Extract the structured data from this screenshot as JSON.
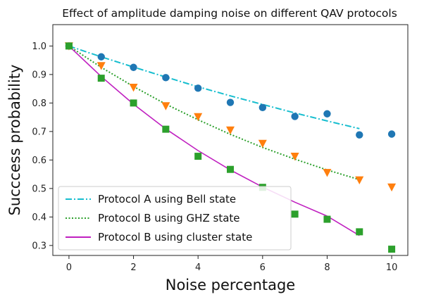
{
  "chart_data": {
    "type": "scatter",
    "title": "Effect of amplitude damping noise on different QAV protocols",
    "xlabel": "Noise percentage",
    "ylabel": "Succcess probability",
    "xlim": [
      -0.5,
      10.5
    ],
    "ylim": [
      0.265,
      1.075
    ],
    "xticks": [
      0,
      2,
      4,
      6,
      8,
      10
    ],
    "yticks": [
      0.3,
      0.4,
      0.5,
      0.6,
      0.7,
      0.8,
      0.9,
      1.0
    ],
    "xtick_labels": [
      "0",
      "2",
      "4",
      "6",
      "8",
      "10"
    ],
    "ytick_labels": [
      "0.3",
      "0.4",
      "0.5",
      "0.6",
      "0.7",
      "0.8",
      "0.9",
      "1.0"
    ],
    "grid": false,
    "legend_position": "lower-left",
    "series": [
      {
        "name": "Protocol A using Bell state",
        "color": "#1f77b4",
        "line_color": "#17becf",
        "line_style": "dash-dot",
        "marker": "circle",
        "points_x": [
          0,
          1,
          2,
          3,
          4,
          5,
          6,
          7,
          8,
          9,
          10
        ],
        "points_y": [
          1.0,
          0.962,
          0.925,
          0.889,
          0.852,
          0.802,
          0.784,
          0.753,
          0.762,
          0.688,
          0.691
        ],
        "fit_x": [
          0,
          1,
          2,
          3,
          4,
          5,
          6,
          7,
          8,
          9
        ],
        "fit_y": [
          1.0,
          0.962,
          0.926,
          0.891,
          0.857,
          0.825,
          0.795,
          0.765,
          0.737,
          0.71
        ]
      },
      {
        "name": "Protocol B using GHZ state",
        "color": "#ff7f0e",
        "line_color": "#2ca02c",
        "line_style": "dotted",
        "marker": "triangle-down",
        "points_x": [
          0,
          1,
          2,
          3,
          4,
          5,
          6,
          7,
          8,
          9,
          10
        ],
        "points_y": [
          1.0,
          0.931,
          0.855,
          0.79,
          0.752,
          0.705,
          0.658,
          0.613,
          0.556,
          0.53,
          0.505
        ],
        "fit_x": [
          0,
          1,
          2,
          3,
          4,
          5,
          6,
          7,
          8,
          9
        ],
        "fit_y": [
          1.0,
          0.925,
          0.858,
          0.796,
          0.741,
          0.69,
          0.644,
          0.603,
          0.565,
          0.531
        ]
      },
      {
        "name": "Protocol B using cluster state",
        "color": "#2ca02c",
        "line_color": "#c020c0",
        "line_style": "solid",
        "marker": "square",
        "points_x": [
          0,
          1,
          2,
          3,
          4,
          5,
          6,
          7,
          8,
          9,
          10
        ],
        "points_y": [
          1.0,
          0.887,
          0.8,
          0.708,
          0.613,
          0.567,
          0.504,
          0.41,
          0.392,
          0.348,
          0.287
        ],
        "fit_x": [
          0,
          1,
          2,
          3,
          4,
          5,
          6,
          7,
          8,
          9
        ],
        "fit_y": [
          1.0,
          0.893,
          0.796,
          0.709,
          0.633,
          0.565,
          0.505,
          0.452,
          0.403,
          0.335
        ]
      }
    ]
  }
}
